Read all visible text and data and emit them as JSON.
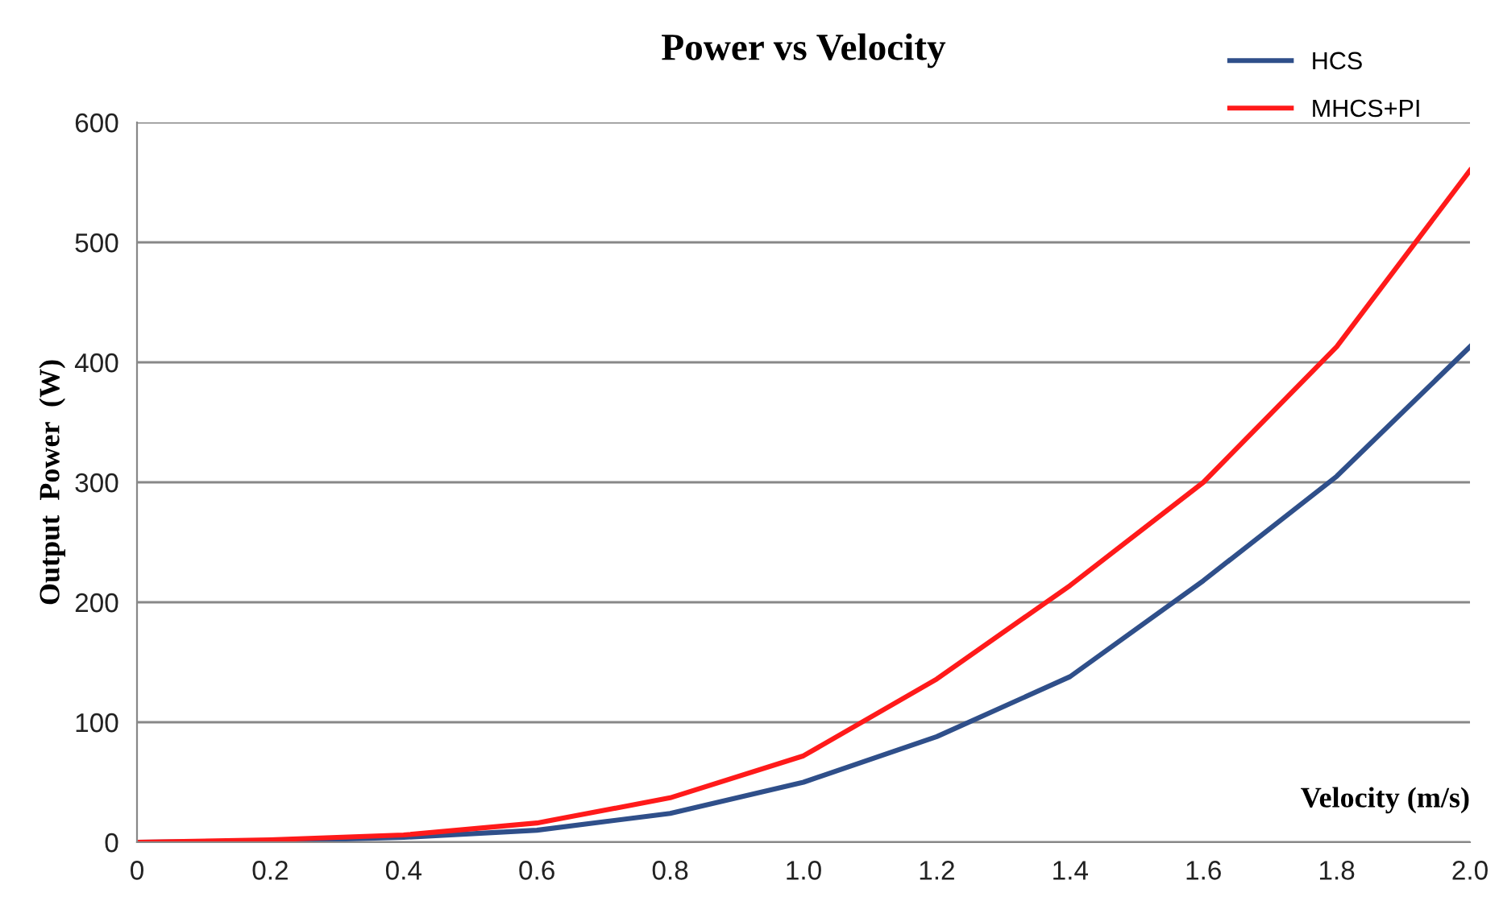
{
  "chart_data": {
    "type": "line",
    "title": "Power vs Velocity",
    "xlabel": "Velocity (m/s)",
    "ylabel": "Output  Power  (W)",
    "x": [
      0,
      0.2,
      0.4,
      0.6,
      0.8,
      1.0,
      1.2,
      1.4,
      1.6,
      1.8,
      2.0
    ],
    "series": [
      {
        "name": "HCS",
        "color": "#2f4f8a",
        "values": [
          0,
          1,
          4,
          10,
          24,
          50,
          88,
          138,
          218,
          305,
          413
        ]
      },
      {
        "name": "MHCS+PI",
        "color": "#ff1a1a",
        "values": [
          0,
          2,
          6,
          16,
          37,
          72,
          136,
          214,
          300,
          413,
          560
        ]
      }
    ],
    "xlim": [
      0,
      2.0
    ],
    "xticks": [
      0,
      {
        "value": 0.2,
        "label": "0.2"
      },
      {
        "value": 0.4,
        "label": "0.4"
      },
      {
        "value": 0.6,
        "label": "0.6"
      },
      {
        "value": 0.8,
        "label": "0.8"
      },
      {
        "value": 1.0,
        "label": "1.0"
      },
      {
        "value": 1.2,
        "label": "1.2"
      },
      {
        "value": 1.4,
        "label": "1.4"
      },
      {
        "value": 1.6,
        "label": "1.6"
      },
      {
        "value": 1.8,
        "label": "1.8"
      },
      {
        "value": 2.0,
        "label": "2.0"
      }
    ],
    "ylim": [
      0,
      600
    ],
    "yticks": [
      0,
      100,
      200,
      300,
      400,
      500,
      600
    ],
    "grid": "y",
    "legend": "top right",
    "marker": "none",
    "line_style": "solid"
  }
}
